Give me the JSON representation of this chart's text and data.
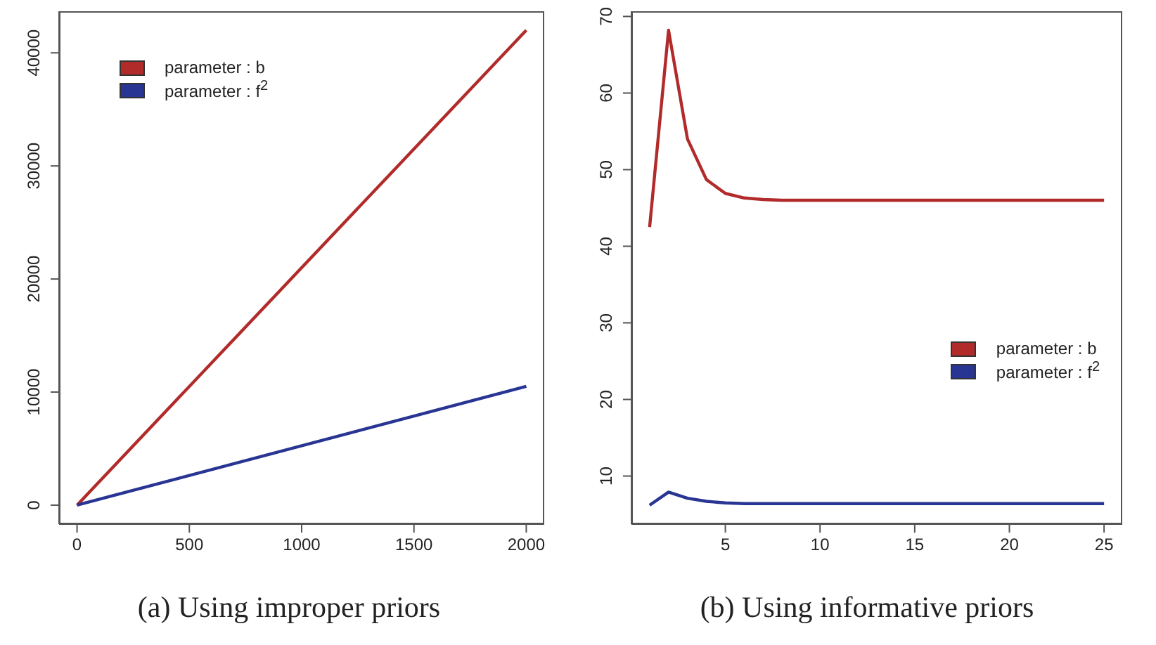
{
  "chart_data": [
    {
      "type": "line",
      "x": [
        0,
        2000
      ],
      "xlim": [
        -80,
        2080
      ],
      "xticks": [
        0,
        500,
        1000,
        1500,
        2000
      ],
      "ylim": [
        -1680,
        43680
      ],
      "yticks": [
        0,
        10000,
        20000,
        30000,
        40000
      ],
      "grid": false,
      "legend": "top left",
      "annotations": [
        "(a) Using improper priors"
      ],
      "series": [
        {
          "name": "parameter : b",
          "color": "#b22b2b",
          "values": [
            0,
            42000
          ]
        },
        {
          "name": "parameter : f$^{2}$",
          "color": "#283593",
          "values": [
            0,
            10500
          ]
        }
      ]
    },
    {
      "type": "line",
      "x": [
        1,
        2,
        3,
        4,
        5,
        6,
        7,
        8,
        9,
        10,
        11,
        12,
        13,
        14,
        15,
        16,
        17,
        18,
        19,
        20,
        21,
        22,
        23,
        24,
        25
      ],
      "xlim": [
        0.04,
        25.96
      ],
      "xticks": [
        5,
        10,
        15,
        20,
        25
      ],
      "ylim": [
        3.72,
        70.68
      ],
      "yticks": [
        10,
        20,
        30,
        40,
        50,
        60,
        70
      ],
      "grid": false,
      "legend": "right",
      "annotations": [
        "(b) Using informative priors"
      ],
      "series": [
        {
          "name": "parameter : b",
          "color": "#b22b2b",
          "values": [
            42.5,
            68.2,
            54.0,
            48.7,
            46.9,
            46.3,
            46.1,
            46.0,
            46.0,
            46.0,
            46.0,
            46.0,
            46.0,
            46.0,
            46.0,
            46.0,
            46.0,
            46.0,
            46.0,
            46.0,
            46.0,
            46.0,
            46.0,
            46.0,
            46.0
          ]
        },
        {
          "name": "parameter : f$^{2}$",
          "color": "#283593",
          "values": [
            6.2,
            7.9,
            7.1,
            6.7,
            6.5,
            6.4,
            6.4,
            6.4,
            6.4,
            6.4,
            6.4,
            6.4,
            6.4,
            6.4,
            6.4,
            6.4,
            6.4,
            6.4,
            6.4,
            6.4,
            6.4,
            6.4,
            6.4,
            6.4,
            6.4
          ]
        }
      ]
    }
  ]
}
